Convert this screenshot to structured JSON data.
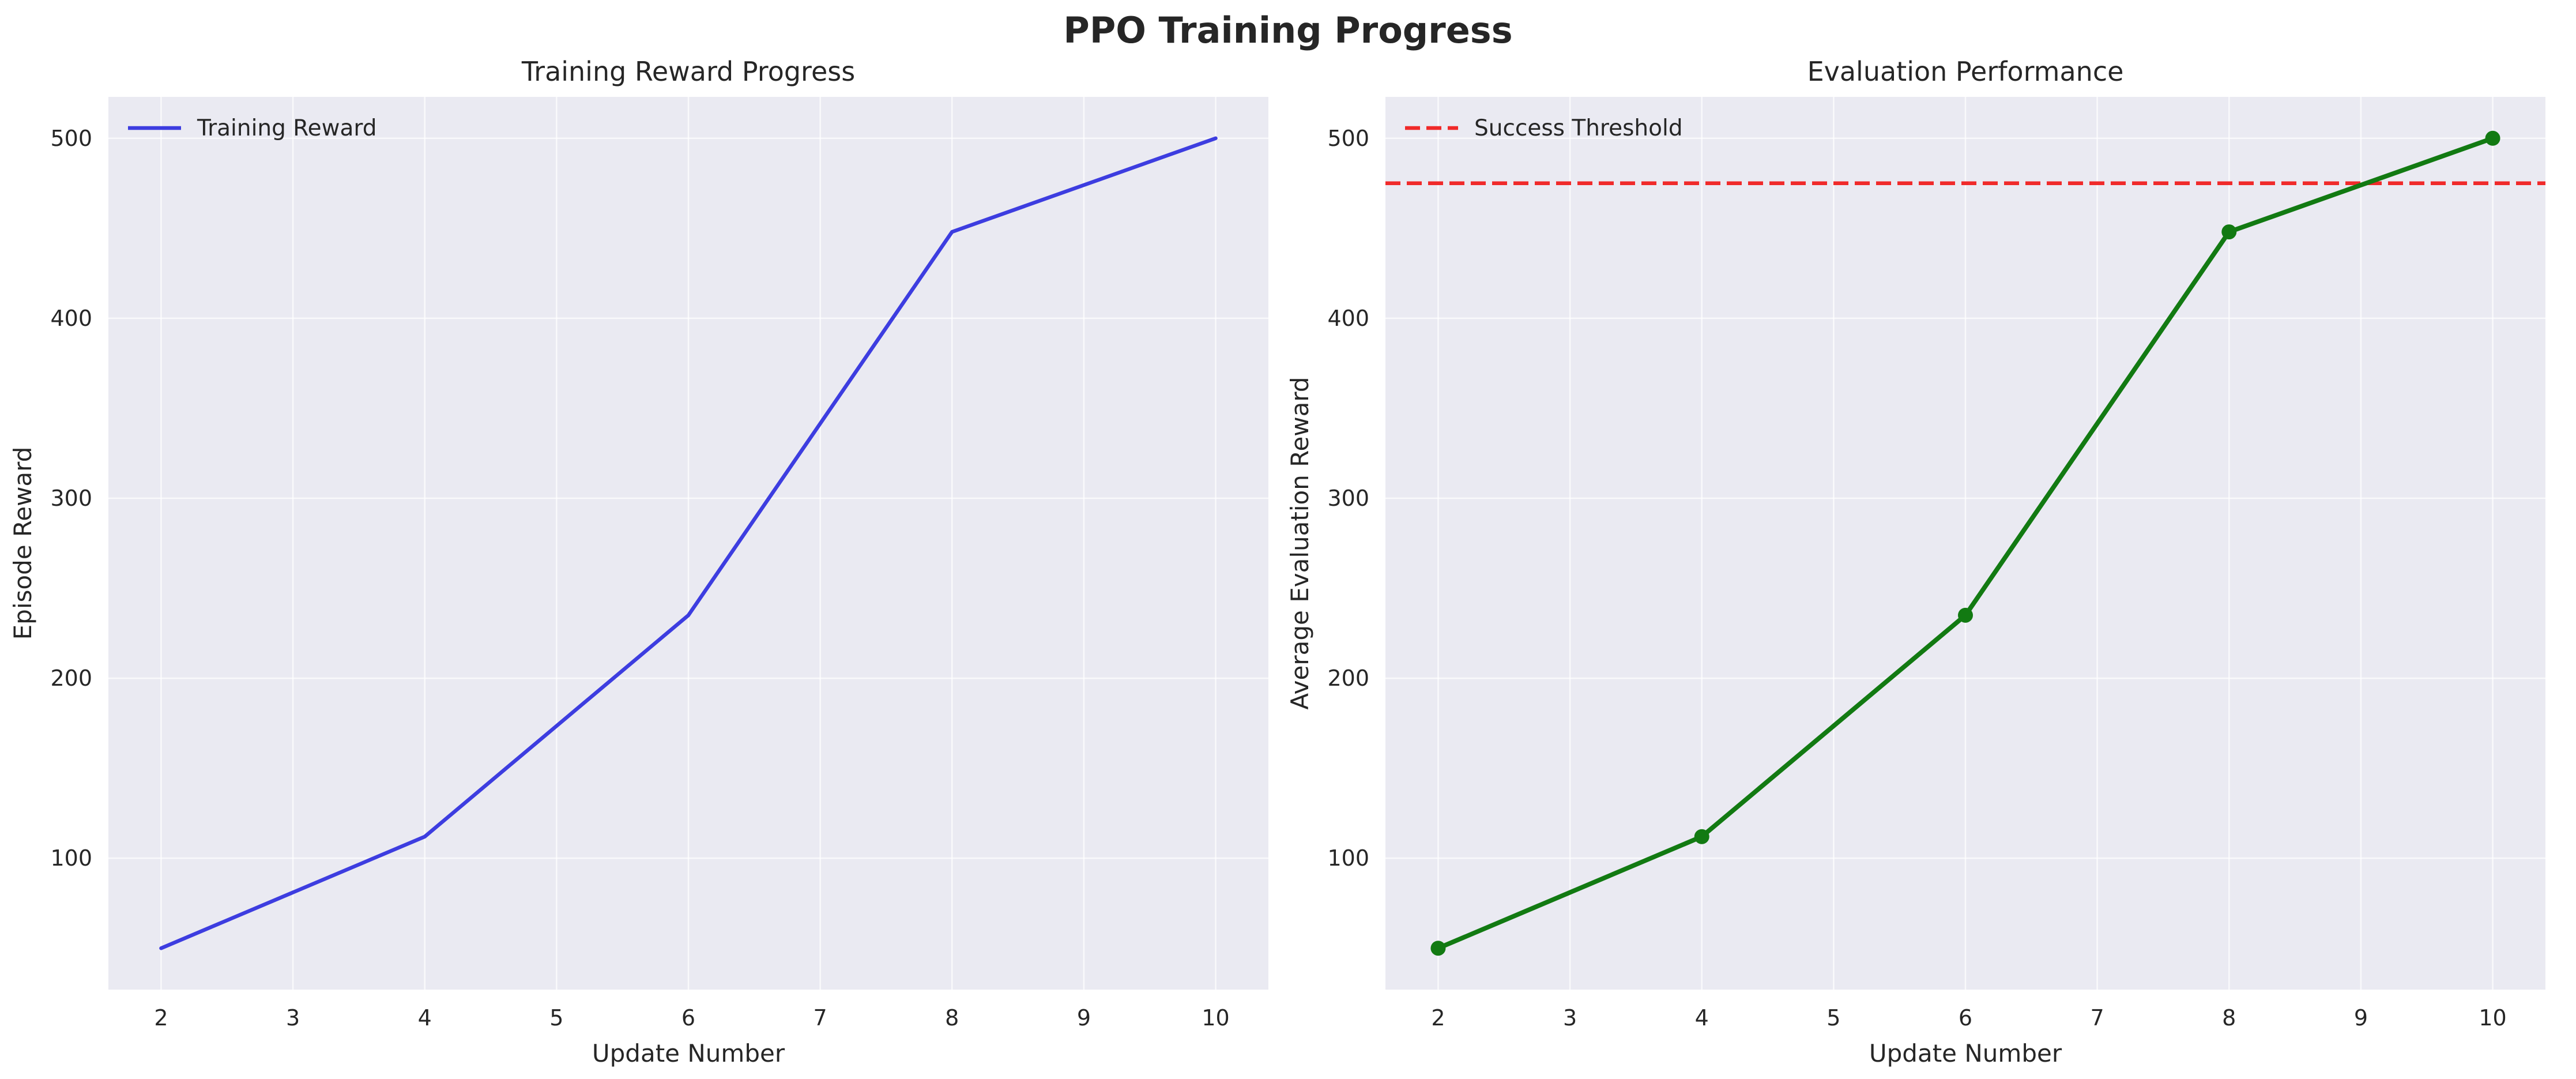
{
  "figure": {
    "title": "PPO Training Progress",
    "background": "#ffffff"
  },
  "chart_data": [
    {
      "type": "line",
      "title": "Training Reward Progress",
      "xlabel": "Update Number",
      "ylabel": "Episode Reward",
      "xlim": [
        1.6,
        10.4
      ],
      "ylim": [
        27,
        523
      ],
      "xticks": [
        2,
        3,
        4,
        5,
        6,
        7,
        8,
        9,
        10
      ],
      "yticks": [
        100,
        200,
        300,
        400,
        500
      ],
      "grid": true,
      "plot_background": "#eaeaf2",
      "legend_position": "top-left",
      "x": [
        2,
        4,
        6,
        8,
        10
      ],
      "series": [
        {
          "name": "Training Reward",
          "values": [
            50,
            112,
            235,
            448,
            500
          ],
          "color": "#3d3de0",
          "style": "solid",
          "markers": false
        }
      ]
    },
    {
      "type": "line",
      "title": "Evaluation Performance",
      "xlabel": "Update Number",
      "ylabel": "Average Evaluation Reward",
      "xlim": [
        1.6,
        10.4
      ],
      "ylim": [
        27,
        523
      ],
      "xticks": [
        2,
        3,
        4,
        5,
        6,
        7,
        8,
        9,
        10
      ],
      "yticks": [
        100,
        200,
        300,
        400,
        500
      ],
      "grid": true,
      "plot_background": "#eaeaf2",
      "legend_position": "top-left",
      "x": [
        2,
        4,
        6,
        8,
        10
      ],
      "series": [
        {
          "name": "",
          "values": [
            50,
            112,
            235,
            448,
            500
          ],
          "color": "#127a12",
          "style": "solid",
          "markers": true
        }
      ],
      "reference_lines": [
        {
          "name": "Success Threshold",
          "orientation": "horizontal",
          "value": 475,
          "color": "#f02a2a",
          "style": "dashed"
        }
      ]
    }
  ]
}
